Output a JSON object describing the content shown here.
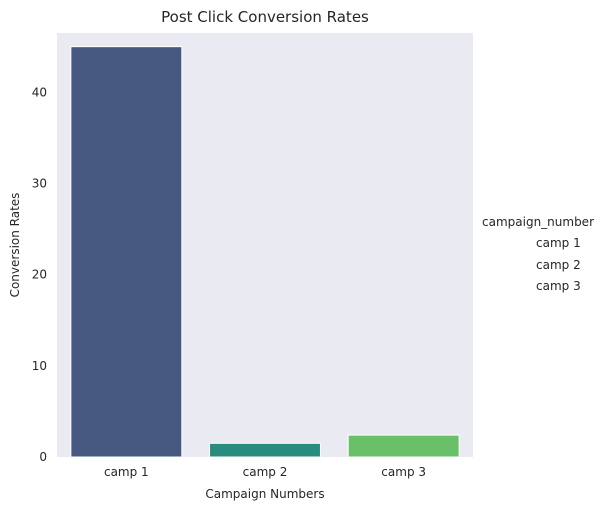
{
  "chart_data": {
    "type": "bar",
    "title": "Post Click Conversion Rates",
    "xlabel": "Campaign Numbers",
    "ylabel": "Conversion Rates",
    "categories": [
      "camp 1",
      "camp 2",
      "camp 3"
    ],
    "values": [
      45.0,
      1.5,
      2.4
    ],
    "colors": [
      "#46587f",
      "#2a8c7f",
      "#6abf69"
    ],
    "ylim": [
      0,
      46.5
    ],
    "yticks": [
      0,
      10,
      20,
      30,
      40
    ],
    "grid": false,
    "background": "#eaeaf2",
    "legend": {
      "title": "campaign_number",
      "entries": [
        "camp 1",
        "camp 2",
        "camp 3"
      ],
      "placement": "right"
    }
  }
}
